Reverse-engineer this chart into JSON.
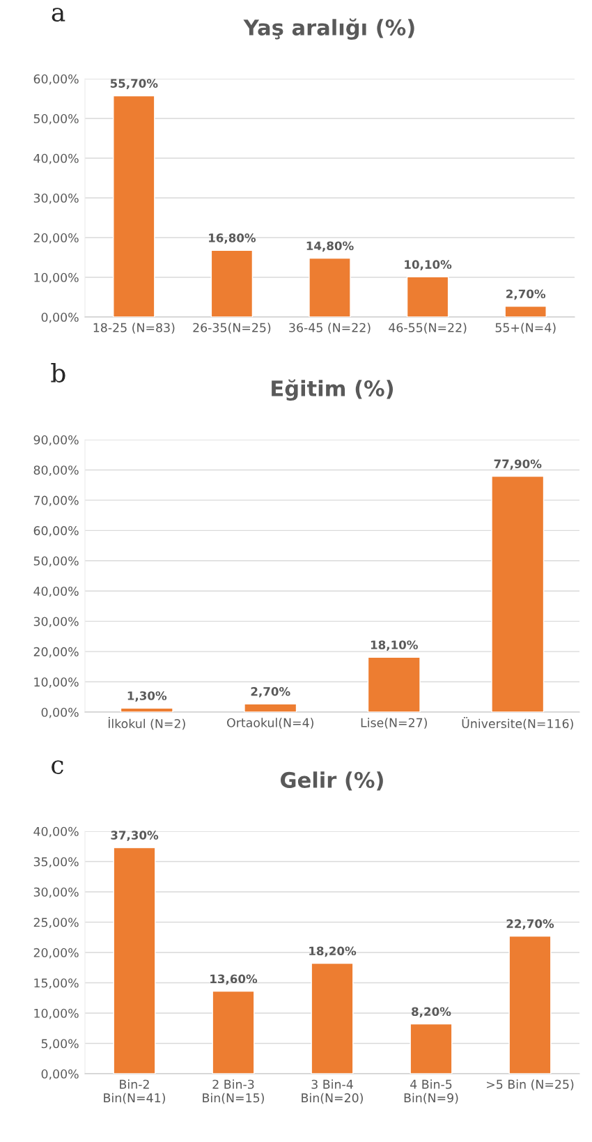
{
  "chart_data": [
    {
      "type": "bar",
      "title": "Yaş aralığı (%)",
      "annotations": [
        "a"
      ],
      "categories": [
        "18-25 (N=83)",
        "26-35(N=25)",
        "36-45 (N=22)",
        "46-55(N=22)",
        "55+(N=4)"
      ],
      "values": [
        55.7,
        16.8,
        14.8,
        10.1,
        2.7
      ],
      "value_labels": [
        "55,70%",
        "16,80%",
        "14,80%",
        "10,10%",
        "2,70%"
      ],
      "color": "#ed7d31",
      "ylim": [
        0,
        60
      ],
      "yticks": [
        {
          "value": 0,
          "label": "0,00%"
        },
        {
          "value": 10,
          "label": "10,00%"
        },
        {
          "value": 20,
          "label": "20,00%"
        },
        {
          "value": 30,
          "label": "30,00%"
        },
        {
          "value": 40,
          "label": "40,00%"
        },
        {
          "value": 50,
          "label": "50,00%"
        },
        {
          "value": 60,
          "label": "60,00%"
        }
      ],
      "grid": "y",
      "legend": false
    },
    {
      "type": "bar",
      "title": "Eğitim (%)",
      "annotations": [
        "b"
      ],
      "categories": [
        "İlkokul (N=2)",
        "Ortaokul(N=4)",
        "Lise(N=27)",
        "Üniversite(N=116)"
      ],
      "values": [
        1.3,
        2.7,
        18.1,
        77.9
      ],
      "value_labels": [
        "1,30%",
        "2,70%",
        "18,10%",
        "77,90%"
      ],
      "color": "#ed7d31",
      "ylim": [
        0,
        90
      ],
      "yticks": [
        {
          "value": 0,
          "label": "0,00%"
        },
        {
          "value": 10,
          "label": "10,00%"
        },
        {
          "value": 20,
          "label": "20,00%"
        },
        {
          "value": 30,
          "label": "30,00%"
        },
        {
          "value": 40,
          "label": "40,00%"
        },
        {
          "value": 50,
          "label": "50,00%"
        },
        {
          "value": 60,
          "label": "60,00%"
        },
        {
          "value": 70,
          "label": "70,00%"
        },
        {
          "value": 80,
          "label": "80,00%"
        },
        {
          "value": 90,
          "label": "90,00%"
        }
      ],
      "grid": "y",
      "legend": false
    },
    {
      "type": "bar",
      "title": "Gelir (%)",
      "annotations": [
        "c"
      ],
      "categories": [
        "Bin-2\nBin(N=41)",
        "2 Bin-3\nBin(N=15)",
        "3 Bin-4\nBin(N=20)",
        "4 Bin-5\nBin(N=9)",
        ">5 Bin (N=25)"
      ],
      "values": [
        37.3,
        13.6,
        18.2,
        8.2,
        22.7
      ],
      "value_labels": [
        "37,30%",
        "13,60%",
        "18,20%",
        "8,20%",
        "22,70%"
      ],
      "color": "#ed7d31",
      "ylim": [
        0,
        40
      ],
      "yticks": [
        {
          "value": 0,
          "label": "0,00%"
        },
        {
          "value": 5,
          "label": "5,00%"
        },
        {
          "value": 10,
          "label": "10,00%"
        },
        {
          "value": 15,
          "label": "15,00%"
        },
        {
          "value": 20,
          "label": "20,00%"
        },
        {
          "value": 25,
          "label": "25,00%"
        },
        {
          "value": 30,
          "label": "30,00%"
        },
        {
          "value": 35,
          "label": "35,00%"
        },
        {
          "value": 40,
          "label": "40,00%"
        }
      ],
      "grid": "y",
      "legend": false
    }
  ]
}
